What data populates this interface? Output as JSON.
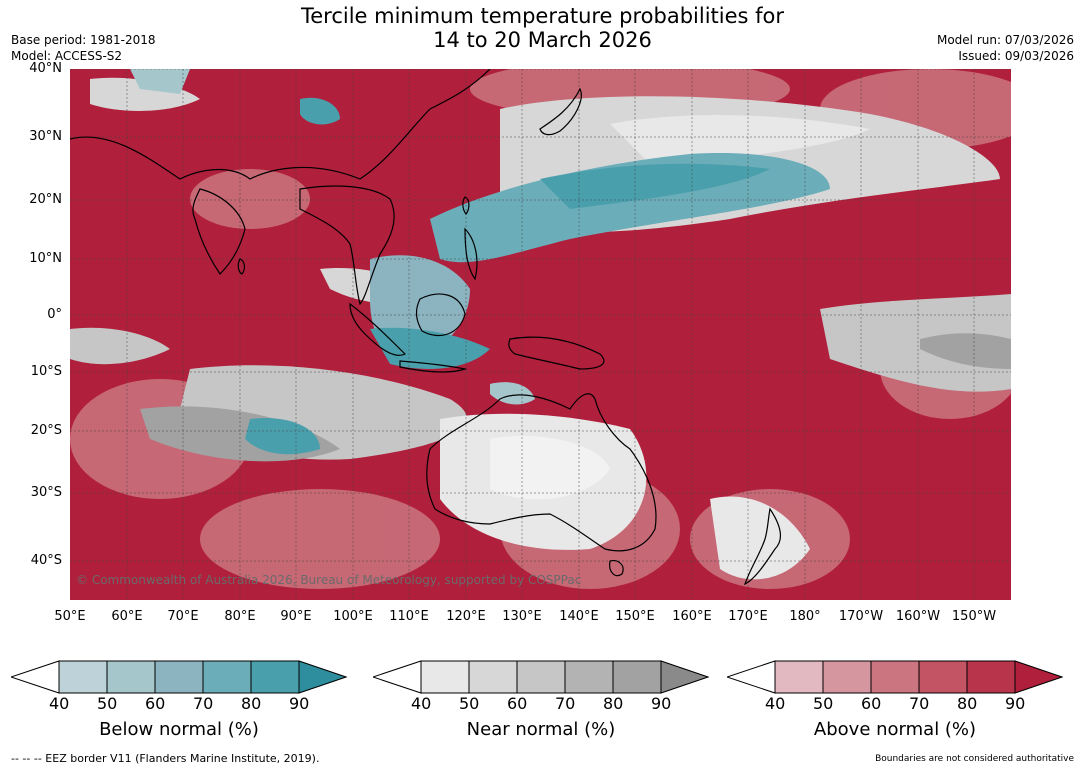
{
  "title_line1": "Tercile minimum temperature probabilities for",
  "title_line2": "14 to 20 March 2026",
  "base_period": "Base period: 1981-2018",
  "model": "Model: ACCESS-S2",
  "model_run": "Model run: 07/03/2026",
  "issued": "Issued: 09/03/2026",
  "lat_labels": [
    "40°N",
    "30°N",
    "20°N",
    "10°N",
    "0°",
    "10°S",
    "20°S",
    "30°S",
    "40°S"
  ],
  "lon_labels": [
    "50°E",
    "60°E",
    "70°E",
    "80°E",
    "90°E",
    "100°E",
    "110°E",
    "120°E",
    "130°E",
    "140°E",
    "150°E",
    "160°E",
    "170°E",
    "180°",
    "170°W",
    "160°W",
    "150°W"
  ],
  "copyright": "© Commonwealth of Australia 2026, Bureau of Meteorology, supported by COSPPac",
  "legends": [
    {
      "title": "Below normal (%)",
      "ticks": [
        "40",
        "50",
        "60",
        "70",
        "80",
        "90"
      ],
      "colors": [
        "#ffffff",
        "#bed3d9",
        "#a5c6cb",
        "#8cb4c0",
        "#6badb8",
        "#4a9fac",
        "#2e8e9e"
      ]
    },
    {
      "title": "Near normal (%)",
      "ticks": [
        "40",
        "50",
        "60",
        "70",
        "80",
        "90"
      ],
      "colors": [
        "#ffffff",
        "#e8e8e8",
        "#d7d7d7",
        "#c6c6c6",
        "#b3b3b3",
        "#a2a2a2",
        "#8a8a8a"
      ]
    },
    {
      "title": "Above normal (%)",
      "ticks": [
        "40",
        "50",
        "60",
        "70",
        "80",
        "90"
      ],
      "colors": [
        "#ffffff",
        "#e2b9c0",
        "#d6969f",
        "#cb7580",
        "#c25464",
        "#b8344a",
        "#b01f3b"
      ]
    }
  ],
  "eez_note": "--  --  -- EEZ border V11 (Flanders Marine Institute, 2019).",
  "boundary_note": "Boundaries are not considered authoritative"
}
